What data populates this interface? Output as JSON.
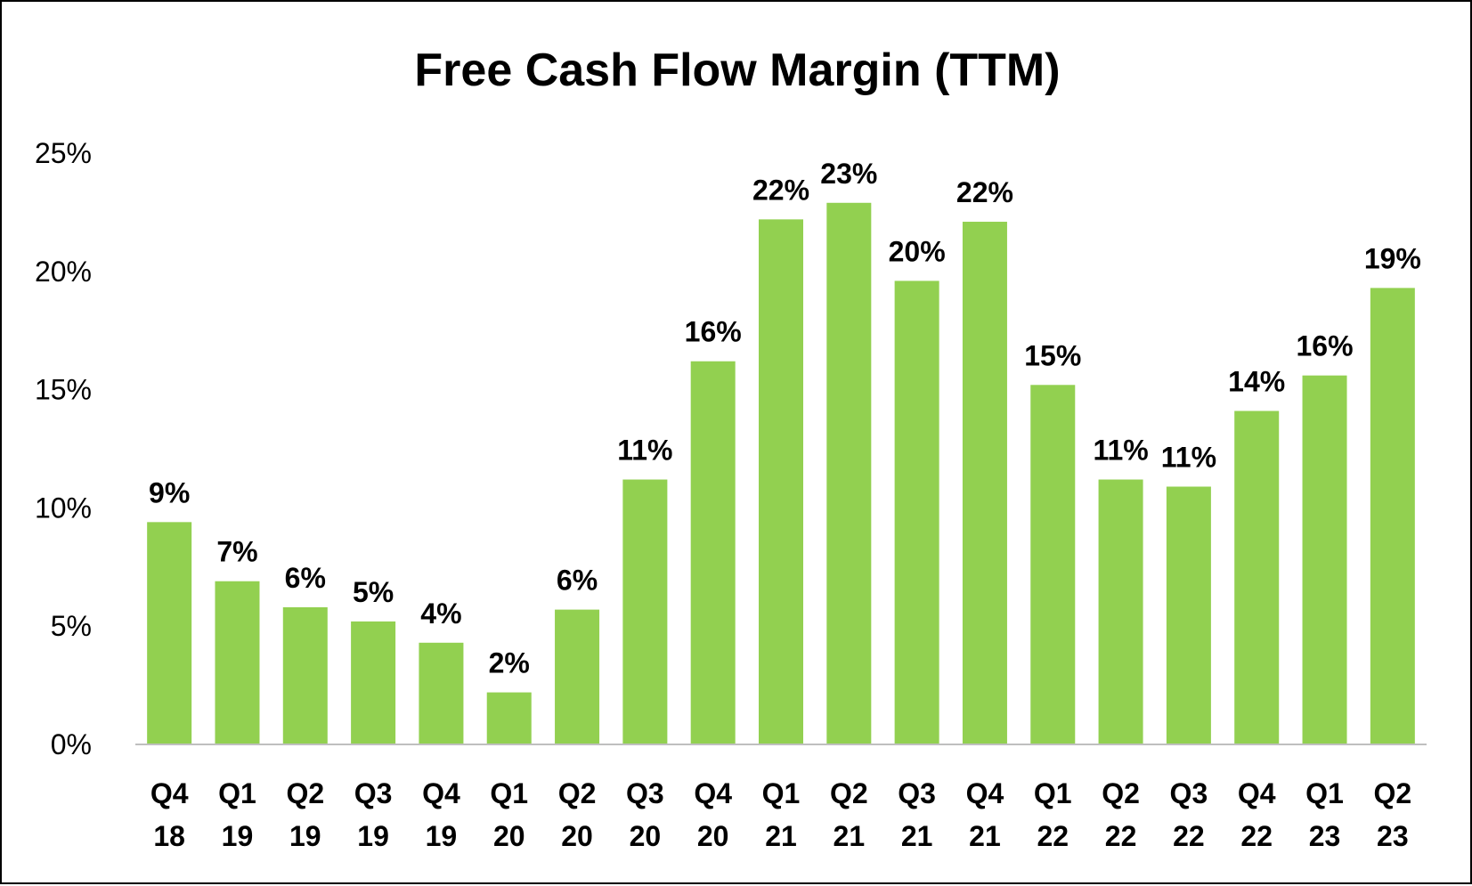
{
  "chart_data": {
    "type": "bar",
    "title": "Free Cash Flow Margin (TTM)",
    "xlabel": "",
    "ylabel": "",
    "ylim": [
      0,
      25
    ],
    "yticks": [
      "0%",
      "5%",
      "10%",
      "15%",
      "20%",
      "25%"
    ],
    "grid": false,
    "categories": [
      [
        "Q4",
        "18"
      ],
      [
        "Q1",
        "19"
      ],
      [
        "Q2",
        "19"
      ],
      [
        "Q3",
        "19"
      ],
      [
        "Q4",
        "19"
      ],
      [
        "Q1",
        "20"
      ],
      [
        "Q2",
        "20"
      ],
      [
        "Q3",
        "20"
      ],
      [
        "Q4",
        "20"
      ],
      [
        "Q1",
        "21"
      ],
      [
        "Q2",
        "21"
      ],
      [
        "Q3",
        "21"
      ],
      [
        "Q4",
        "21"
      ],
      [
        "Q1",
        "22"
      ],
      [
        "Q2",
        "22"
      ],
      [
        "Q3",
        "22"
      ],
      [
        "Q4",
        "22"
      ],
      [
        "Q1",
        "23"
      ],
      [
        "Q2",
        "23"
      ]
    ],
    "values": [
      9.4,
      6.9,
      5.8,
      5.2,
      4.3,
      2.2,
      5.7,
      11.2,
      16.2,
      22.2,
      22.9,
      19.6,
      22.1,
      15.2,
      11.2,
      10.9,
      14.1,
      15.6,
      19.3
    ],
    "data_labels": [
      "9%",
      "7%",
      "6%",
      "5%",
      "4%",
      "2%",
      "6%",
      "11%",
      "16%",
      "22%",
      "23%",
      "20%",
      "22%",
      "15%",
      "11%",
      "11%",
      "14%",
      "16%",
      "19%"
    ],
    "bar_color": "#92D050"
  }
}
